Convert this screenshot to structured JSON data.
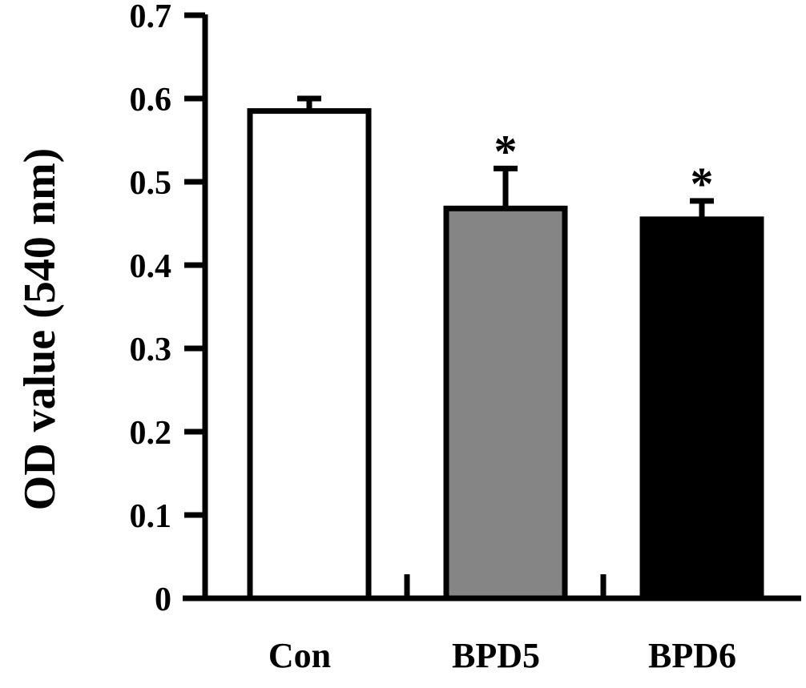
{
  "chart_data": {
    "type": "bar",
    "categories": [
      "Con",
      "BPD5",
      "BPD6"
    ],
    "values": [
      0.585,
      0.468,
      0.455
    ],
    "errors": [
      0.015,
      0.048,
      0.022
    ],
    "bar_fills": [
      "#ffffff",
      "#858585",
      "#000000"
    ],
    "significance": [
      "",
      "*",
      "*"
    ],
    "ylabel": "OD value (540 nm)",
    "ylim": [
      0,
      0.7
    ],
    "yticks": [
      0,
      0.1,
      0.2,
      0.3,
      0.4,
      0.5,
      0.6,
      0.7
    ],
    "ytick_labels": [
      "0",
      "0.1",
      "0.2",
      "0.3",
      "0.4",
      "0.5",
      "0.6",
      "0.7"
    ],
    "grid": false,
    "legend": "none"
  }
}
